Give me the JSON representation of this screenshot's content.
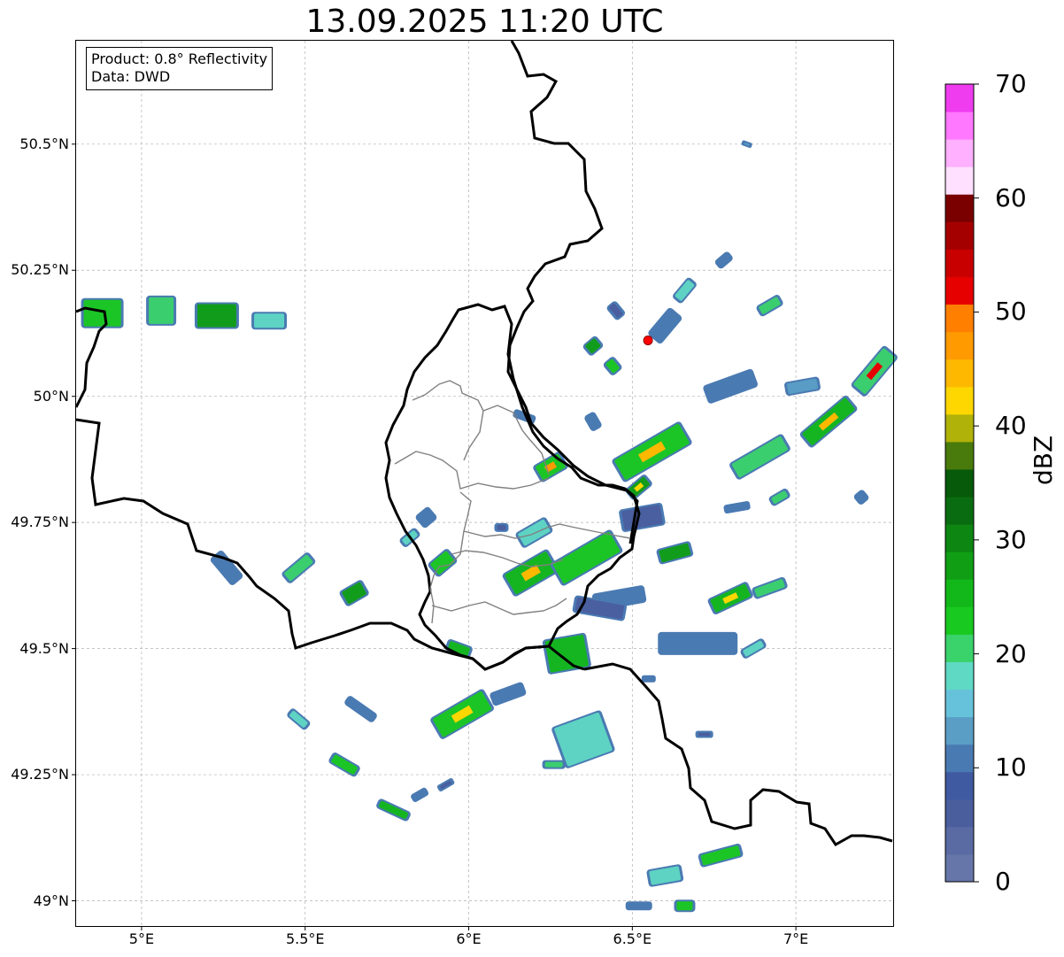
{
  "title": "13.09.2025 11:20 UTC",
  "info": {
    "product": "Product: 0.8° Reflectivity",
    "data": "Data: DWD"
  },
  "map": {
    "lon_range": [
      4.8,
      7.3
    ],
    "lat_range": [
      48.95,
      50.705
    ],
    "lon_ticks": [
      {
        "value": 5.0,
        "label": "5°E"
      },
      {
        "value": 5.5,
        "label": "5.5°E"
      },
      {
        "value": 6.0,
        "label": "6°E"
      },
      {
        "value": 6.5,
        "label": "6.5°E"
      },
      {
        "value": 7.0,
        "label": "7°E"
      }
    ],
    "lat_ticks": [
      {
        "value": 49.0,
        "label": "49°N"
      },
      {
        "value": 49.25,
        "label": "49.25°N"
      },
      {
        "value": 49.5,
        "label": "49.5°N"
      },
      {
        "value": 49.75,
        "label": "49.75°N"
      },
      {
        "value": 50.0,
        "label": "50°N"
      },
      {
        "value": 50.25,
        "label": "50.25°N"
      },
      {
        "value": 50.5,
        "label": "50.5°N"
      }
    ],
    "grid": true,
    "radar_site": {
      "lon": 6.548,
      "lat": 50.111,
      "color": "#ff0000"
    }
  },
  "colorbar": {
    "label": "dBZ",
    "min": 0,
    "max": 70,
    "ticks": [
      "0",
      "10",
      "20",
      "30",
      "40",
      "50",
      "60",
      "70"
    ],
    "colors": [
      "#6676a8",
      "#5a6aa2",
      "#4a5e9e",
      "#3f5aa0",
      "#4a7ab2",
      "#5a9ec6",
      "#66c2da",
      "#5fd8c4",
      "#3ad36b",
      "#18c91f",
      "#12b81a",
      "#0f9e14",
      "#0d8612",
      "#0a6c10",
      "#075a0a",
      "#487a0c",
      "#b0b20a",
      "#ffd700",
      "#ffb800",
      "#ff9a00",
      "#ff7f00",
      "#e60000",
      "#c80000",
      "#a50000",
      "#7a0000",
      "#ffe0ff",
      "#ffb0ff",
      "#ff78ff",
      "#ee3cee"
    ]
  },
  "echoes": [
    {
      "lon": 4.88,
      "lat": 50.165,
      "w": 48,
      "h": 34,
      "a": 0,
      "c": "#18c91f"
    },
    {
      "lon": 5.06,
      "lat": 50.17,
      "w": 34,
      "h": 34,
      "a": 0,
      "c": "#3ad36b"
    },
    {
      "lon": 5.23,
      "lat": 50.16,
      "w": 50,
      "h": 30,
      "a": 0,
      "c": "#0f9e14"
    },
    {
      "lon": 5.39,
      "lat": 50.15,
      "w": 40,
      "h": 20,
      "a": 0,
      "c": "#5fd8c4"
    },
    {
      "lon": 6.56,
      "lat": 49.89,
      "w": 90,
      "h": 30,
      "a": -30,
      "c": "#18c91f",
      "core": "#ffb800"
    },
    {
      "lon": 6.52,
      "lat": 49.82,
      "w": 30,
      "h": 16,
      "a": -40,
      "c": "#0f9e14",
      "core": "#ffd700"
    },
    {
      "lon": 6.89,
      "lat": 49.88,
      "w": 70,
      "h": 22,
      "a": -30,
      "c": "#3ad36b"
    },
    {
      "lon": 7.1,
      "lat": 49.95,
      "w": 70,
      "h": 22,
      "a": -40,
      "c": "#12b81a",
      "core": "#ffb800"
    },
    {
      "lon": 7.24,
      "lat": 50.05,
      "w": 60,
      "h": 22,
      "a": -50,
      "c": "#3ad36b",
      "core": "#e60000"
    },
    {
      "lon": 6.8,
      "lat": 50.02,
      "w": 60,
      "h": 22,
      "a": -20,
      "c": "#4a7ab2"
    },
    {
      "lon": 7.02,
      "lat": 50.02,
      "w": 40,
      "h": 16,
      "a": -10,
      "c": "#5a9ec6"
    },
    {
      "lon": 6.25,
      "lat": 49.86,
      "w": 36,
      "h": 22,
      "a": -30,
      "c": "#18c91f",
      "core": "#ff9a00"
    },
    {
      "lon": 6.19,
      "lat": 49.65,
      "w": 60,
      "h": 30,
      "a": -30,
      "c": "#12b81a",
      "core": "#ffb800"
    },
    {
      "lon": 6.36,
      "lat": 49.68,
      "w": 80,
      "h": 30,
      "a": -30,
      "c": "#18c91f"
    },
    {
      "lon": 6.2,
      "lat": 49.73,
      "w": 40,
      "h": 20,
      "a": -30,
      "c": "#5fd8c4"
    },
    {
      "lon": 6.46,
      "lat": 49.6,
      "w": 60,
      "h": 20,
      "a": -10,
      "c": "#4a7ab2"
    },
    {
      "lon": 6.53,
      "lat": 49.76,
      "w": 50,
      "h": 26,
      "a": -10,
      "c": "#4a5e9e"
    },
    {
      "lon": 6.63,
      "lat": 49.69,
      "w": 40,
      "h": 18,
      "a": -15,
      "c": "#0f9e14"
    },
    {
      "lon": 6.8,
      "lat": 49.6,
      "w": 50,
      "h": 20,
      "a": -25,
      "c": "#12b81a",
      "core": "#ffd700"
    },
    {
      "lon": 6.92,
      "lat": 49.62,
      "w": 40,
      "h": 14,
      "a": -20,
      "c": "#3ad36b"
    },
    {
      "lon": 6.7,
      "lat": 49.51,
      "w": 90,
      "h": 26,
      "a": 0,
      "c": "#4a7ab2"
    },
    {
      "lon": 6.87,
      "lat": 49.5,
      "w": 30,
      "h": 12,
      "a": -30,
      "c": "#5fd8c4"
    },
    {
      "lon": 6.3,
      "lat": 49.49,
      "w": 50,
      "h": 40,
      "a": -10,
      "c": "#12b81a"
    },
    {
      "lon": 6.4,
      "lat": 49.58,
      "w": 60,
      "h": 20,
      "a": 10,
      "c": "#4a5e9e"
    },
    {
      "lon": 5.98,
      "lat": 49.37,
      "w": 70,
      "h": 28,
      "a": -30,
      "c": "#18c91f",
      "core": "#ffd700"
    },
    {
      "lon": 6.12,
      "lat": 49.41,
      "w": 40,
      "h": 16,
      "a": -20,
      "c": "#4a7ab2"
    },
    {
      "lon": 6.35,
      "lat": 49.32,
      "w": 60,
      "h": 50,
      "a": -20,
      "c": "#5fd8c4"
    },
    {
      "lon": 6.26,
      "lat": 49.27,
      "w": 26,
      "h": 10,
      "a": 0,
      "c": "#3ad36b"
    },
    {
      "lon": 5.62,
      "lat": 49.27,
      "w": 36,
      "h": 14,
      "a": 30,
      "c": "#18c91f"
    },
    {
      "lon": 5.48,
      "lat": 49.36,
      "w": 28,
      "h": 12,
      "a": 40,
      "c": "#5fd8c4"
    },
    {
      "lon": 5.67,
      "lat": 49.38,
      "w": 40,
      "h": 12,
      "a": 35,
      "c": "#4a7ab2"
    },
    {
      "lon": 5.77,
      "lat": 49.18,
      "w": 40,
      "h": 12,
      "a": 25,
      "c": "#12b81a"
    },
    {
      "lon": 5.85,
      "lat": 49.21,
      "w": 20,
      "h": 10,
      "a": -30,
      "c": "#4a7ab2"
    },
    {
      "lon": 5.93,
      "lat": 49.23,
      "w": 20,
      "h": 8,
      "a": -30,
      "c": "#4a5e9e"
    },
    {
      "lon": 5.26,
      "lat": 49.66,
      "w": 40,
      "h": 18,
      "a": 50,
      "c": "#4a7ab2"
    },
    {
      "lon": 5.48,
      "lat": 49.66,
      "w": 40,
      "h": 16,
      "a": -40,
      "c": "#3ad36b"
    },
    {
      "lon": 5.65,
      "lat": 49.61,
      "w": 30,
      "h": 20,
      "a": -30,
      "c": "#0f9e14"
    },
    {
      "lon": 5.82,
      "lat": 49.72,
      "w": 24,
      "h": 12,
      "a": -40,
      "c": "#5fd8c4"
    },
    {
      "lon": 5.92,
      "lat": 49.67,
      "w": 30,
      "h": 20,
      "a": -40,
      "c": "#18c91f"
    },
    {
      "lon": 5.97,
      "lat": 49.5,
      "w": 30,
      "h": 14,
      "a": 20,
      "c": "#12b81a"
    },
    {
      "lon": 5.87,
      "lat": 49.76,
      "w": 20,
      "h": 18,
      "a": -40,
      "c": "#4a7ab2"
    },
    {
      "lon": 6.6,
      "lat": 50.14,
      "w": 40,
      "h": 20,
      "a": -50,
      "c": "#4a7ab2"
    },
    {
      "lon": 6.66,
      "lat": 50.21,
      "w": 30,
      "h": 14,
      "a": -50,
      "c": "#5fd8c4"
    },
    {
      "lon": 6.38,
      "lat": 50.1,
      "w": 20,
      "h": 16,
      "a": -40,
      "c": "#0f9e14"
    },
    {
      "lon": 6.44,
      "lat": 50.06,
      "w": 16,
      "h": 18,
      "a": -40,
      "c": "#18c91f"
    },
    {
      "lon": 6.45,
      "lat": 50.17,
      "w": 14,
      "h": 20,
      "a": -40,
      "c": "#4a5e9e"
    },
    {
      "lon": 6.92,
      "lat": 50.18,
      "w": 30,
      "h": 14,
      "a": -30,
      "c": "#3ad36b"
    },
    {
      "lon": 6.38,
      "lat": 49.95,
      "w": 14,
      "h": 20,
      "a": -30,
      "c": "#4a7ab2"
    },
    {
      "lon": 6.6,
      "lat": 49.05,
      "w": 40,
      "h": 20,
      "a": -10,
      "c": "#5fd8c4"
    },
    {
      "lon": 6.77,
      "lat": 49.09,
      "w": 50,
      "h": 16,
      "a": -15,
      "c": "#18c91f"
    },
    {
      "lon": 6.52,
      "lat": 48.99,
      "w": 30,
      "h": 10,
      "a": 0,
      "c": "#4a7ab2"
    },
    {
      "lon": 6.66,
      "lat": 48.99,
      "w": 24,
      "h": 14,
      "a": 0,
      "c": "#18c91f"
    },
    {
      "lon": 6.82,
      "lat": 49.78,
      "w": 30,
      "h": 10,
      "a": -10,
      "c": "#4a7ab2"
    },
    {
      "lon": 6.95,
      "lat": 49.8,
      "w": 24,
      "h": 12,
      "a": -30,
      "c": "#3ad36b"
    },
    {
      "lon": 6.78,
      "lat": 50.27,
      "w": 20,
      "h": 12,
      "a": -40,
      "c": "#4a7ab2"
    },
    {
      "lon": 6.85,
      "lat": 50.5,
      "w": 12,
      "h": 6,
      "a": 20,
      "c": "#5a9ec6"
    },
    {
      "lon": 7.2,
      "lat": 49.8,
      "w": 14,
      "h": 14,
      "a": -40,
      "c": "#4a7ab2"
    },
    {
      "lon": 6.17,
      "lat": 49.96,
      "w": 26,
      "h": 10,
      "a": 20,
      "c": "#4a7ab2"
    },
    {
      "lon": 6.1,
      "lat": 49.74,
      "w": 16,
      "h": 10,
      "a": 0,
      "c": "#4a5e9e"
    },
    {
      "lon": 6.55,
      "lat": 49.44,
      "w": 16,
      "h": 8,
      "a": 0,
      "c": "#4a7ab2"
    },
    {
      "lon": 6.72,
      "lat": 49.33,
      "w": 20,
      "h": 8,
      "a": 0,
      "c": "#4a5e9e"
    }
  ]
}
